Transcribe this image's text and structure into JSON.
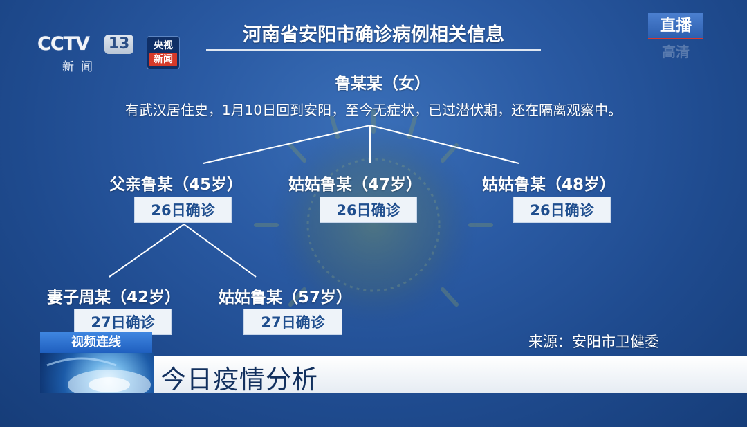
{
  "broadcast": {
    "channel_word": "CCTV",
    "channel_number": "13",
    "channel_sub": "新闻",
    "news_logo_top": "央视",
    "news_logo_bottom": "新闻",
    "live_label": "直播",
    "hd_label": "高清"
  },
  "diagram": {
    "title": "河南省安阳市确诊病例相关信息",
    "root": {
      "name": "鲁某某（女）",
      "description": "有武汉居住史，1月10日回到安阳，至今无症状，已过潜伏期，还在隔离观察中。"
    },
    "level1": [
      {
        "name": "父亲鲁某（45岁）",
        "status": "26日确诊"
      },
      {
        "name": "姑姑鲁某（47岁）",
        "status": "26日确诊"
      },
      {
        "name": "姑姑鲁某（48岁）",
        "status": "26日确诊"
      }
    ],
    "level2": [
      {
        "name": "妻子周某（42岁）",
        "status": "27日确诊"
      },
      {
        "name": "姑姑鲁某（57岁）",
        "status": "27日确诊"
      }
    ],
    "source": "来源：安阳市卫健委"
  },
  "lower_third": {
    "tag": "视频连线",
    "headline": "今日疫情分析"
  },
  "colors": {
    "background": "#1f4b8f",
    "box_fill": "#eef3f9",
    "box_text": "#1f4e8e",
    "line": "#ffffff"
  }
}
